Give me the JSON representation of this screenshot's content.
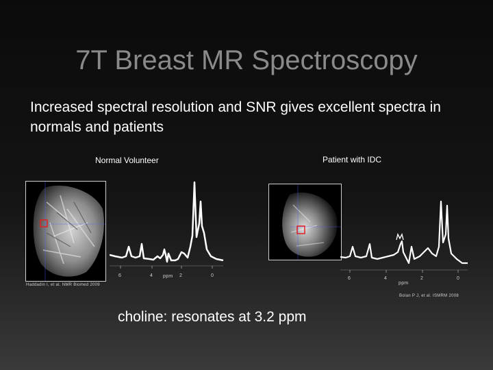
{
  "slide": {
    "title": "7T Breast MR Spectroscopy",
    "subtitle": "Increased spectral resolution and SNR gives excellent spectra in normals and patients",
    "bottom_text": "choline: resonates at 3.2 ppm"
  },
  "left_panel": {
    "label": "Normal Volunteer",
    "citation": "Haddadin I, et al. NMR Biomed 2009",
    "axis_ticks": [
      "6",
      "4",
      "ppm",
      "2",
      "0"
    ]
  },
  "right_panel": {
    "label": "Patient with IDC",
    "citation": "Bolan P J, et al. ISMRM 2008",
    "axis_ticks": [
      "6",
      "4",
      "2",
      "0"
    ],
    "axis_unit": "ppm"
  },
  "colors": {
    "title": "#8a8a8a",
    "voxel_marker": "#e02020"
  }
}
